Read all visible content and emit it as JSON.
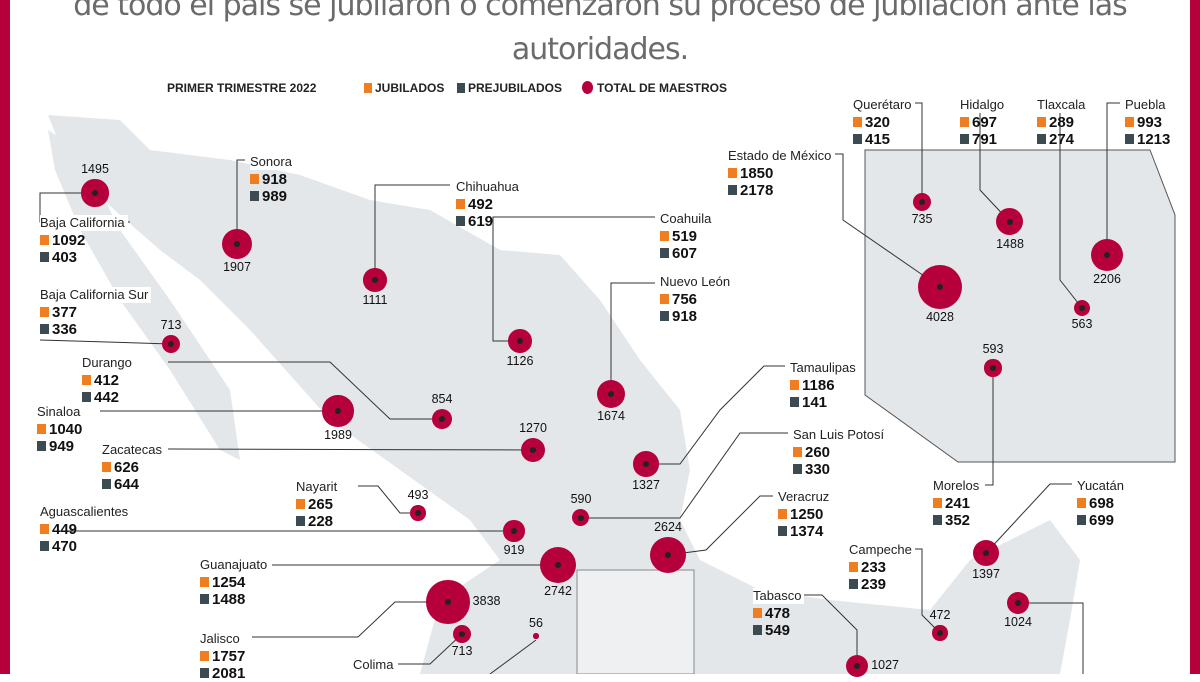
{
  "headline": "de todo el país se jubilaron o comenzaron su proceso de jubilación ante las autoridades.",
  "legend": {
    "period": "PRIMER TRIMESTRE 2022",
    "jubilados": "JUBILADOS",
    "prejubilados": "PREJUBILADOS",
    "total": "TOTAL DE MAESTROS"
  },
  "colors": {
    "jubilados": "#f07d1f",
    "prejubilados": "#3c4a52",
    "total": "#b5003c",
    "map": "#e4e7ea"
  },
  "states": [
    {
      "name": "Baja California",
      "jubilados": "1092",
      "prejubilados": "403",
      "total": "1495"
    },
    {
      "name": "Sonora",
      "jubilados": "918",
      "prejubilados": "989",
      "total": "1907"
    },
    {
      "name": "Chihuahua",
      "jubilados": "492",
      "prejubilados": "619",
      "total": "1111"
    },
    {
      "name": "Coahuila",
      "jubilados": "519",
      "prejubilados": "607",
      "total": "1126"
    },
    {
      "name": "Nuevo León",
      "jubilados": "756",
      "prejubilados": "918",
      "total": "1674"
    },
    {
      "name": "Baja California Sur",
      "jubilados": "377",
      "prejubilados": "336",
      "total": "713"
    },
    {
      "name": "Durango",
      "jubilados": "412",
      "prejubilados": "442",
      "total": "854"
    },
    {
      "name": "Sinaloa",
      "jubilados": "1040",
      "prejubilados": "949",
      "total": "1989"
    },
    {
      "name": "Zacatecas",
      "jubilados": "626",
      "prejubilados": "644",
      "total": "1270"
    },
    {
      "name": "Tamaulipas",
      "jubilados": "1186",
      "prejubilados": "141",
      "total": "1327"
    },
    {
      "name": "San Luis Potosí",
      "jubilados": "260",
      "prejubilados": "330",
      "total": "590"
    },
    {
      "name": "Nayarit",
      "jubilados": "265",
      "prejubilados": "228",
      "total": "493"
    },
    {
      "name": "Aguascalientes",
      "jubilados": "449",
      "prejubilados": "470",
      "total": "919"
    },
    {
      "name": "Veracruz",
      "jubilados": "1250",
      "prejubilados": "1374",
      "total": "2624"
    },
    {
      "name": "Guanajuato",
      "jubilados": "1254",
      "prejubilados": "1488",
      "total": "2742"
    },
    {
      "name": "Jalisco",
      "jubilados": "1757",
      "prejubilados": "2081",
      "total": "3838"
    },
    {
      "name": "Colima",
      "total": "713"
    },
    {
      "name": "Estado de México",
      "jubilados": "1850",
      "prejubilados": "2178",
      "total": "4028"
    },
    {
      "name": "Querétaro",
      "jubilados": "320",
      "prejubilados": "415",
      "total": "735"
    },
    {
      "name": "Hidalgo",
      "jubilados": "697",
      "prejubilados": "791",
      "total": "1488"
    },
    {
      "name": "Tlaxcala",
      "jubilados": "289",
      "prejubilados": "274",
      "total": "563"
    },
    {
      "name": "Puebla",
      "jubilados": "993",
      "prejubilados": "1213",
      "total": "2206"
    },
    {
      "name": "Morelos",
      "jubilados": "241",
      "prejubilados": "352",
      "total": "593"
    },
    {
      "name": "Yucatán",
      "jubilados": "698",
      "prejubilados": "699",
      "total": "1397"
    },
    {
      "name": "Campeche",
      "jubilados": "233",
      "prejubilados": "239",
      "total": "472"
    },
    {
      "name": "Tabasco",
      "jubilados": "478",
      "prejubilados": "549",
      "total": "1027"
    }
  ],
  "unlabeled_totals": [
    "56",
    "1024"
  ]
}
